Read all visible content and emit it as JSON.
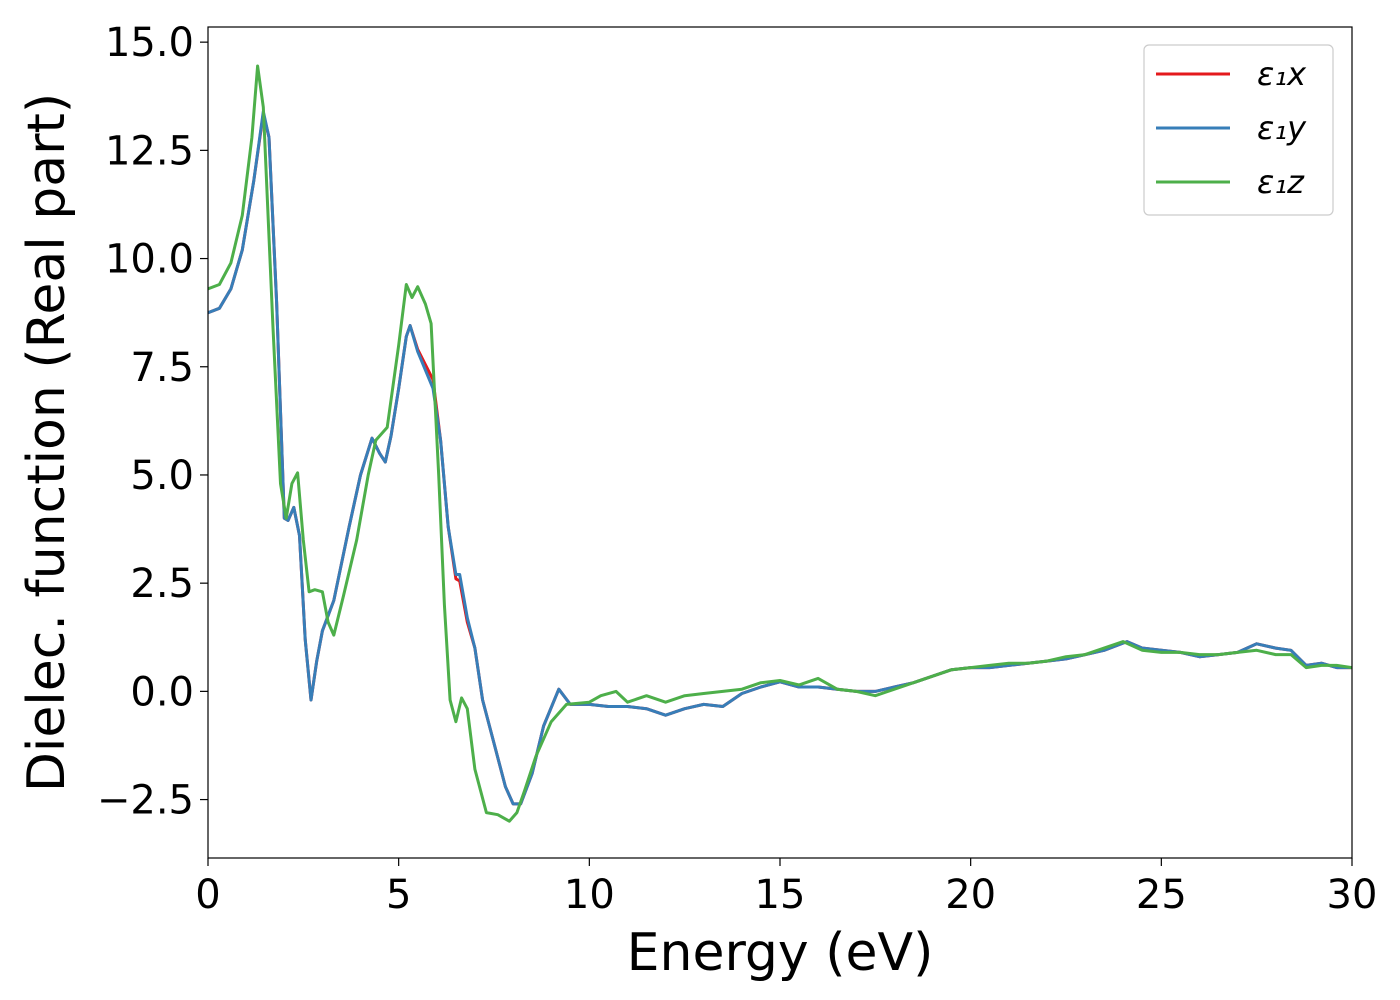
{
  "chart_data": {
    "type": "line",
    "title": "",
    "xlabel": "Energy (eV)",
    "ylabel": "Dielec. function (Real part)",
    "xlim": [
      0,
      30
    ],
    "ylim": [
      -3.85,
      15.35
    ],
    "xticks": [
      0,
      5,
      10,
      15,
      20,
      25,
      30
    ],
    "xtick_labels": [
      "0",
      "5",
      "10",
      "15",
      "20",
      "25",
      "30"
    ],
    "yticks": [
      -2.5,
      0,
      2.5,
      5,
      7.5,
      10,
      12.5,
      15
    ],
    "ytick_labels": [
      "−2.5",
      "0.0",
      "2.5",
      "5.0",
      "7.5",
      "10.0",
      "12.5",
      "15.0"
    ],
    "grid": false,
    "legend_position": "top-right",
    "series": [
      {
        "name": "ε₁x",
        "color": "#e41a1c",
        "points": [
          [
            0,
            8.75
          ],
          [
            0.3,
            8.85
          ],
          [
            0.6,
            9.3
          ],
          [
            0.9,
            10.2
          ],
          [
            1.2,
            11.8
          ],
          [
            1.45,
            13.35
          ],
          [
            1.6,
            12.8
          ],
          [
            1.8,
            9.0
          ],
          [
            2.0,
            4.0
          ],
          [
            2.1,
            3.95
          ],
          [
            2.25,
            4.25
          ],
          [
            2.4,
            3.6
          ],
          [
            2.55,
            1.2
          ],
          [
            2.7,
            -0.2
          ],
          [
            2.85,
            0.7
          ],
          [
            3.0,
            1.4
          ],
          [
            3.3,
            2.1
          ],
          [
            3.7,
            3.8
          ],
          [
            4.0,
            5.0
          ],
          [
            4.3,
            5.85
          ],
          [
            4.5,
            5.5
          ],
          [
            4.65,
            5.3
          ],
          [
            4.8,
            5.9
          ],
          [
            5.0,
            7.0
          ],
          [
            5.2,
            8.2
          ],
          [
            5.3,
            8.45
          ],
          [
            5.5,
            7.9
          ],
          [
            5.9,
            7.2
          ],
          [
            6.1,
            5.8
          ],
          [
            6.3,
            3.8
          ],
          [
            6.5,
            2.6
          ],
          [
            6.6,
            2.55
          ],
          [
            6.8,
            1.6
          ],
          [
            7.0,
            1.0
          ],
          [
            7.2,
            -0.2
          ],
          [
            7.5,
            -1.2
          ],
          [
            7.8,
            -2.2
          ],
          [
            8.0,
            -2.6
          ],
          [
            8.2,
            -2.6
          ],
          [
            8.5,
            -1.9
          ],
          [
            8.8,
            -0.8
          ],
          [
            9.2,
            0.05
          ],
          [
            9.5,
            -0.3
          ],
          [
            10,
            -0.3
          ],
          [
            10.5,
            -0.35
          ],
          [
            11,
            -0.35
          ],
          [
            11.5,
            -0.4
          ],
          [
            12,
            -0.55
          ],
          [
            12.5,
            -0.4
          ],
          [
            13,
            -0.3
          ],
          [
            13.5,
            -0.35
          ],
          [
            14,
            -0.05
          ],
          [
            14.5,
            0.1
          ],
          [
            15,
            0.22
          ],
          [
            15.5,
            0.1
          ],
          [
            16,
            0.1
          ],
          [
            16.5,
            0.05
          ],
          [
            17,
            0.0
          ],
          [
            17.5,
            0.0
          ],
          [
            18,
            0.1
          ],
          [
            18.5,
            0.2
          ],
          [
            19,
            0.35
          ],
          [
            19.5,
            0.5
          ],
          [
            20,
            0.55
          ],
          [
            20.5,
            0.55
          ],
          [
            21,
            0.6
          ],
          [
            21.5,
            0.65
          ],
          [
            22,
            0.7
          ],
          [
            22.5,
            0.75
          ],
          [
            23,
            0.85
          ],
          [
            23.5,
            0.95
          ],
          [
            24.1,
            1.15
          ],
          [
            24.5,
            1.0
          ],
          [
            25,
            0.95
          ],
          [
            25.5,
            0.9
          ],
          [
            26,
            0.8
          ],
          [
            26.5,
            0.85
          ],
          [
            27,
            0.9
          ],
          [
            27.5,
            1.1
          ],
          [
            28,
            1.0
          ],
          [
            28.4,
            0.95
          ],
          [
            28.8,
            0.6
          ],
          [
            29.2,
            0.65
          ],
          [
            29.6,
            0.55
          ],
          [
            30,
            0.55
          ]
        ]
      },
      {
        "name": "ε₁y",
        "color": "#377eb8",
        "points": [
          [
            0,
            8.75
          ],
          [
            0.3,
            8.85
          ],
          [
            0.6,
            9.3
          ],
          [
            0.9,
            10.2
          ],
          [
            1.2,
            11.8
          ],
          [
            1.45,
            13.4
          ],
          [
            1.6,
            12.8
          ],
          [
            1.8,
            9.0
          ],
          [
            2.0,
            4.0
          ],
          [
            2.1,
            3.95
          ],
          [
            2.25,
            4.25
          ],
          [
            2.4,
            3.6
          ],
          [
            2.55,
            1.2
          ],
          [
            2.7,
            -0.2
          ],
          [
            2.85,
            0.7
          ],
          [
            3.0,
            1.4
          ],
          [
            3.3,
            2.1
          ],
          [
            3.7,
            3.8
          ],
          [
            4.0,
            5.0
          ],
          [
            4.3,
            5.85
          ],
          [
            4.5,
            5.5
          ],
          [
            4.65,
            5.3
          ],
          [
            4.8,
            5.9
          ],
          [
            5.0,
            7.0
          ],
          [
            5.2,
            8.2
          ],
          [
            5.3,
            8.45
          ],
          [
            5.5,
            7.85
          ],
          [
            5.9,
            7.0
          ],
          [
            6.1,
            5.8
          ],
          [
            6.3,
            3.8
          ],
          [
            6.5,
            2.7
          ],
          [
            6.6,
            2.7
          ],
          [
            6.8,
            1.7
          ],
          [
            7.0,
            1.0
          ],
          [
            7.2,
            -0.2
          ],
          [
            7.5,
            -1.2
          ],
          [
            7.8,
            -2.2
          ],
          [
            8.0,
            -2.6
          ],
          [
            8.2,
            -2.6
          ],
          [
            8.5,
            -1.9
          ],
          [
            8.8,
            -0.8
          ],
          [
            9.2,
            0.05
          ],
          [
            9.5,
            -0.3
          ],
          [
            10,
            -0.3
          ],
          [
            10.5,
            -0.35
          ],
          [
            11,
            -0.35
          ],
          [
            11.5,
            -0.4
          ],
          [
            12,
            -0.55
          ],
          [
            12.5,
            -0.4
          ],
          [
            13,
            -0.3
          ],
          [
            13.5,
            -0.35
          ],
          [
            14,
            -0.05
          ],
          [
            14.5,
            0.1
          ],
          [
            15,
            0.22
          ],
          [
            15.5,
            0.1
          ],
          [
            16,
            0.1
          ],
          [
            16.5,
            0.05
          ],
          [
            17,
            0.0
          ],
          [
            17.5,
            0.0
          ],
          [
            18,
            0.1
          ],
          [
            18.5,
            0.2
          ],
          [
            19,
            0.35
          ],
          [
            19.5,
            0.5
          ],
          [
            20,
            0.55
          ],
          [
            20.5,
            0.55
          ],
          [
            21,
            0.6
          ],
          [
            21.5,
            0.65
          ],
          [
            22,
            0.7
          ],
          [
            22.5,
            0.75
          ],
          [
            23,
            0.85
          ],
          [
            23.5,
            0.95
          ],
          [
            24.1,
            1.15
          ],
          [
            24.5,
            1.0
          ],
          [
            25,
            0.95
          ],
          [
            25.5,
            0.9
          ],
          [
            26,
            0.8
          ],
          [
            26.5,
            0.85
          ],
          [
            27,
            0.9
          ],
          [
            27.5,
            1.1
          ],
          [
            28,
            1.0
          ],
          [
            28.4,
            0.95
          ],
          [
            28.8,
            0.6
          ],
          [
            29.2,
            0.65
          ],
          [
            29.6,
            0.55
          ],
          [
            30,
            0.55
          ]
        ]
      },
      {
        "name": "ε₁z",
        "color": "#4daf4a",
        "points": [
          [
            0,
            9.3
          ],
          [
            0.3,
            9.4
          ],
          [
            0.6,
            9.9
          ],
          [
            0.9,
            11.0
          ],
          [
            1.15,
            12.8
          ],
          [
            1.3,
            14.45
          ],
          [
            1.45,
            13.5
          ],
          [
            1.7,
            8.5
          ],
          [
            1.9,
            4.8
          ],
          [
            2.05,
            4.0
          ],
          [
            2.2,
            4.8
          ],
          [
            2.35,
            5.05
          ],
          [
            2.5,
            3.5
          ],
          [
            2.65,
            2.3
          ],
          [
            2.8,
            2.35
          ],
          [
            3.0,
            2.3
          ],
          [
            3.15,
            1.6
          ],
          [
            3.3,
            1.3
          ],
          [
            3.55,
            2.2
          ],
          [
            3.9,
            3.5
          ],
          [
            4.2,
            5.0
          ],
          [
            4.4,
            5.8
          ],
          [
            4.7,
            6.1
          ],
          [
            5.0,
            8.0
          ],
          [
            5.2,
            9.4
          ],
          [
            5.35,
            9.1
          ],
          [
            5.5,
            9.35
          ],
          [
            5.7,
            8.95
          ],
          [
            5.85,
            8.5
          ],
          [
            6.05,
            5.0
          ],
          [
            6.2,
            2.0
          ],
          [
            6.35,
            -0.2
          ],
          [
            6.5,
            -0.7
          ],
          [
            6.65,
            -0.15
          ],
          [
            6.8,
            -0.4
          ],
          [
            7.0,
            -1.8
          ],
          [
            7.3,
            -2.8
          ],
          [
            7.6,
            -2.85
          ],
          [
            7.9,
            -3.0
          ],
          [
            8.1,
            -2.8
          ],
          [
            8.3,
            -2.3
          ],
          [
            8.6,
            -1.5
          ],
          [
            9.0,
            -0.7
          ],
          [
            9.4,
            -0.3
          ],
          [
            10,
            -0.25
          ],
          [
            10.3,
            -0.1
          ],
          [
            10.7,
            0.0
          ],
          [
            11,
            -0.25
          ],
          [
            11.5,
            -0.1
          ],
          [
            12,
            -0.25
          ],
          [
            12.5,
            -0.1
          ],
          [
            13,
            -0.05
          ],
          [
            13.5,
            0.0
          ],
          [
            14,
            0.05
          ],
          [
            14.5,
            0.2
          ],
          [
            15,
            0.25
          ],
          [
            15.5,
            0.15
          ],
          [
            16,
            0.3
          ],
          [
            16.5,
            0.05
          ],
          [
            17,
            0.0
          ],
          [
            17.5,
            -0.1
          ],
          [
            18,
            0.05
          ],
          [
            18.5,
            0.2
          ],
          [
            19,
            0.35
          ],
          [
            19.5,
            0.5
          ],
          [
            20,
            0.55
          ],
          [
            20.5,
            0.6
          ],
          [
            21,
            0.65
          ],
          [
            21.5,
            0.65
          ],
          [
            22,
            0.7
          ],
          [
            22.5,
            0.8
          ],
          [
            23,
            0.85
          ],
          [
            23.5,
            1.0
          ],
          [
            24.0,
            1.15
          ],
          [
            24.5,
            0.95
          ],
          [
            25,
            0.9
          ],
          [
            25.5,
            0.9
          ],
          [
            26,
            0.85
          ],
          [
            26.5,
            0.85
          ],
          [
            27,
            0.9
          ],
          [
            27.5,
            0.95
          ],
          [
            28,
            0.85
          ],
          [
            28.4,
            0.85
          ],
          [
            28.8,
            0.55
          ],
          [
            29.2,
            0.6
          ],
          [
            29.6,
            0.6
          ],
          [
            30,
            0.55
          ]
        ]
      }
    ]
  }
}
